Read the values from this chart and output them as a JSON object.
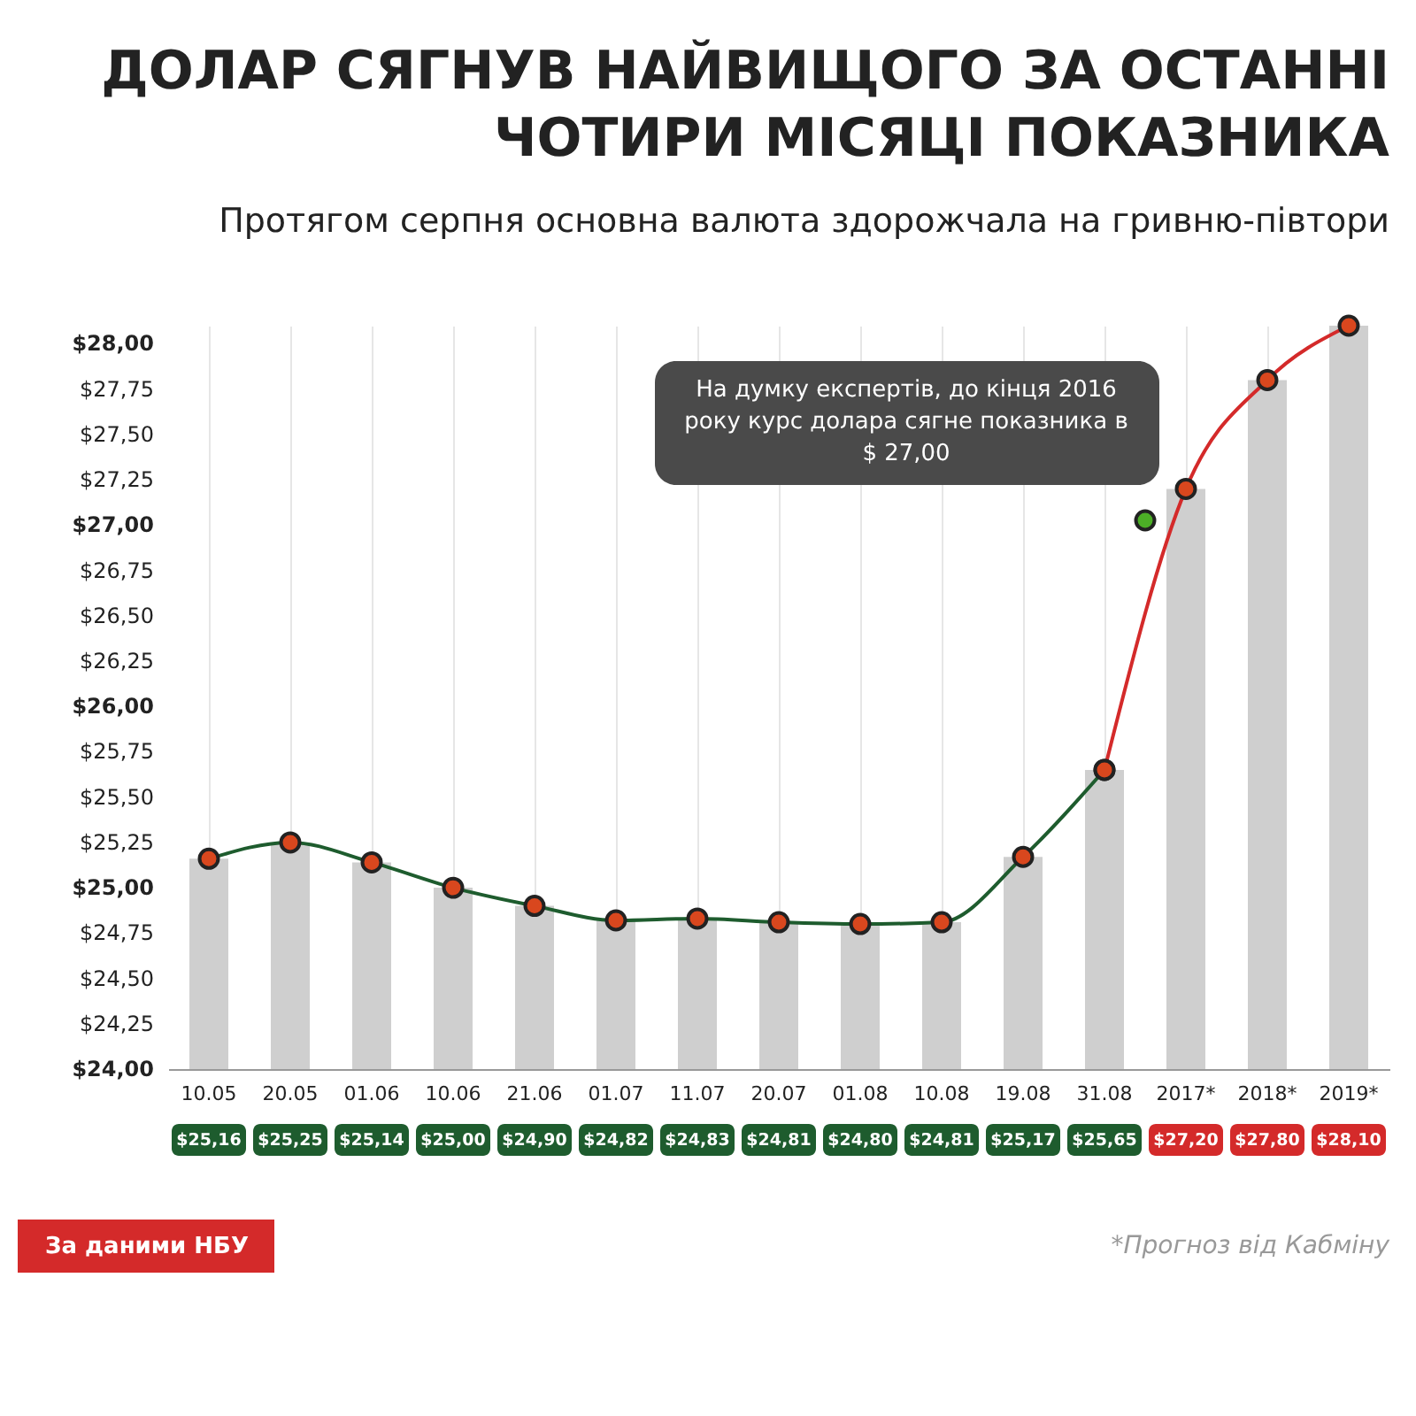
{
  "chart_data": {
    "type": "bar",
    "title": "ДОЛАР СЯГНУВ НАЙВИЩОГО ЗА ОСТАННІ ЧОТИРИ МІСЯЦІ ПОКАЗНИКА",
    "subtitle": "Протягом серпня основна валюта здорожчала на гривню-півтори",
    "categories": [
      "10.05",
      "20.05",
      "01.06",
      "10.06",
      "21.06",
      "01.07",
      "11.07",
      "20.07",
      "01.08",
      "10.08",
      "19.08",
      "31.08",
      "2017*",
      "2018*",
      "2019*"
    ],
    "series": [
      {
        "color": "#cfcfcf",
        "values": [
          25.16,
          25.25,
          25.14,
          25.0,
          24.9,
          24.82,
          24.83,
          24.81,
          24.8,
          24.81,
          25.17,
          25.65,
          27.2,
          27.8,
          28.1
        ],
        "value_labels": [
          "$25,16",
          "$25,25",
          "$25,14",
          "$25,00",
          "$24,90",
          "$24,82",
          "$24,83",
          "$24,81",
          "$24,80",
          "$24,81",
          "$25,17",
          "$25,65",
          "$27,20",
          "$27,80",
          "$28,10"
        ]
      },
      {
        "type": "line",
        "color": "#1e5c2e",
        "values": [
          25.16,
          25.25,
          25.14,
          25.0,
          24.9,
          24.82,
          24.83,
          24.81,
          24.8,
          24.81,
          25.17,
          25.65,
          null,
          null,
          null
        ]
      },
      {
        "type": "line",
        "color": "#d42a2a",
        "values": [
          null,
          null,
          null,
          null,
          null,
          null,
          null,
          null,
          null,
          null,
          null,
          25.65,
          27.2,
          27.8,
          28.1
        ]
      }
    ],
    "ylim": [
      24,
      28.1
    ],
    "yticks": [
      {
        "value": 24,
        "label": "$24,00"
      },
      {
        "value": 24.25,
        "label": "$24,25"
      },
      {
        "value": 24.5,
        "label": "$24,50"
      },
      {
        "value": 24.75,
        "label": "$24,75"
      },
      {
        "value": 25,
        "label": "$25,00"
      },
      {
        "value": 25.25,
        "label": "$25,25"
      },
      {
        "value": 25.5,
        "label": "$25,50"
      },
      {
        "value": 25.75,
        "label": "$25,75"
      },
      {
        "value": 26,
        "label": "$26,00"
      },
      {
        "value": 26.25,
        "label": "$26,25"
      },
      {
        "value": 26.5,
        "label": "$26,50"
      },
      {
        "value": 26.75,
        "label": "$26,75"
      },
      {
        "value": 27,
        "label": "$27,00"
      },
      {
        "value": 27.25,
        "label": "$27,25"
      },
      {
        "value": 27.5,
        "label": "$27,50"
      },
      {
        "value": 27.75,
        "label": "$27,75"
      },
      {
        "value": 28,
        "label": "$28,00"
      }
    ],
    "annotations": [
      "На думку експертів, до кінця 2016 року курс долара сягне показника в $ 27,00",
      "За даними НБУ",
      "*Прогноз від Кабміну"
    ],
    "grid": "x",
    "marker": "circle",
    "line_style": "solid"
  }
}
